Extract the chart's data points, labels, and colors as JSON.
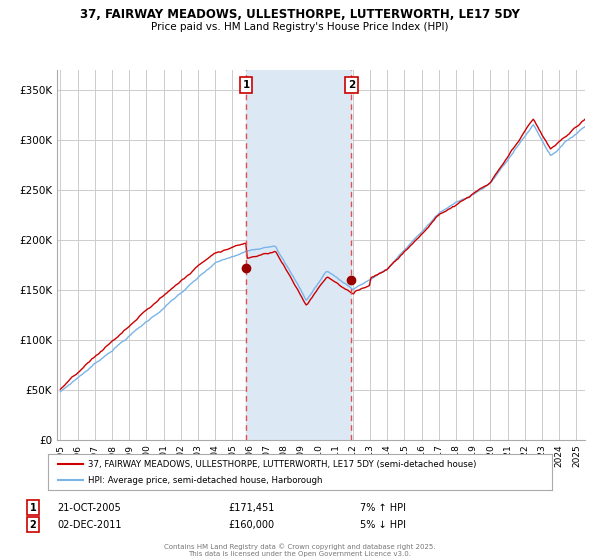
{
  "title": "37, FAIRWAY MEADOWS, ULLESTHORPE, LUTTERWORTH, LE17 5DY",
  "subtitle": "Price paid vs. HM Land Registry's House Price Index (HPI)",
  "legend_line1": "37, FAIRWAY MEADOWS, ULLESTHORPE, LUTTERWORTH, LE17 5DY (semi-detached house)",
  "legend_line2": "HPI: Average price, semi-detached house, Harborough",
  "footer": "Contains HM Land Registry data © Crown copyright and database right 2025.\nThis data is licensed under the Open Government Licence v3.0.",
  "annotation1_label": "1",
  "annotation1_date": "21-OCT-2005",
  "annotation1_price": "£171,451",
  "annotation1_hpi": "7% ↑ HPI",
  "annotation2_label": "2",
  "annotation2_date": "02-DEC-2011",
  "annotation2_price": "£160,000",
  "annotation2_hpi": "5% ↓ HPI",
  "purchase1_year": 2005.8,
  "purchase1_value": 171451,
  "purchase2_year": 2011.92,
  "purchase2_value": 160000,
  "hpi_line_color": "#7ab4e8",
  "price_line_color": "#cc0000",
  "dot_color": "#990000",
  "shading_color": "#dce9f5",
  "dashed_line_color": "#e05050",
  "grid_color": "#cccccc",
  "bg_color": "#ffffff",
  "ylim": [
    0,
    370000
  ],
  "yticks": [
    0,
    50000,
    100000,
    150000,
    200000,
    250000,
    300000,
    350000
  ],
  "ytick_labels": [
    "£0",
    "£50K",
    "£100K",
    "£150K",
    "£200K",
    "£250K",
    "£300K",
    "£350K"
  ],
  "xstart": 1995,
  "xend": 2025
}
